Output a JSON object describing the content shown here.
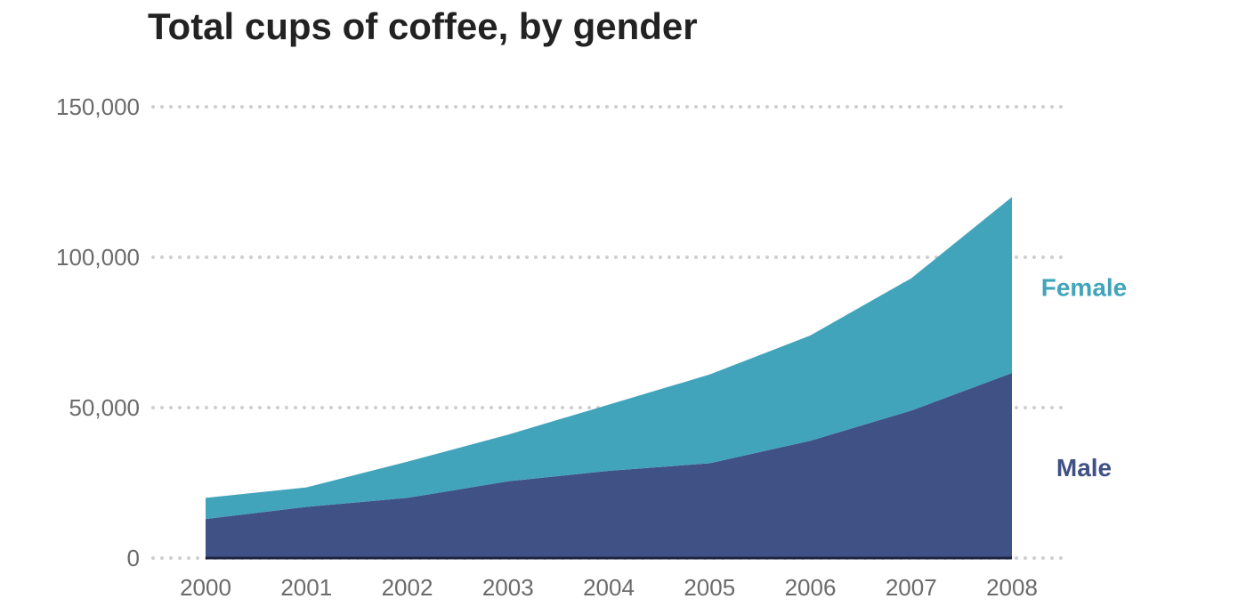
{
  "chart_data": {
    "type": "area",
    "stacked": true,
    "title": "Total cups of coffee, by gender",
    "x": [
      "2000",
      "2001",
      "2002",
      "2003",
      "2004",
      "2005",
      "2006",
      "2007",
      "2008"
    ],
    "series": [
      {
        "name": "Male",
        "color": "#405185",
        "values": [
          13000,
          17000,
          20000,
          25500,
          29000,
          31500,
          39000,
          49000,
          61500
        ]
      },
      {
        "name": "Female",
        "color": "#41a4bb",
        "values": [
          7000,
          6500,
          12000,
          15500,
          22000,
          29500,
          35000,
          44000,
          58500
        ]
      }
    ],
    "y_ticks": [
      "0",
      "50,000",
      "100,000",
      "150,000"
    ],
    "ylim": [
      0,
      150000
    ],
    "grid": "horizontal dotted",
    "legend": "direct labels right of the last point",
    "xlabel": "",
    "ylabel": ""
  }
}
